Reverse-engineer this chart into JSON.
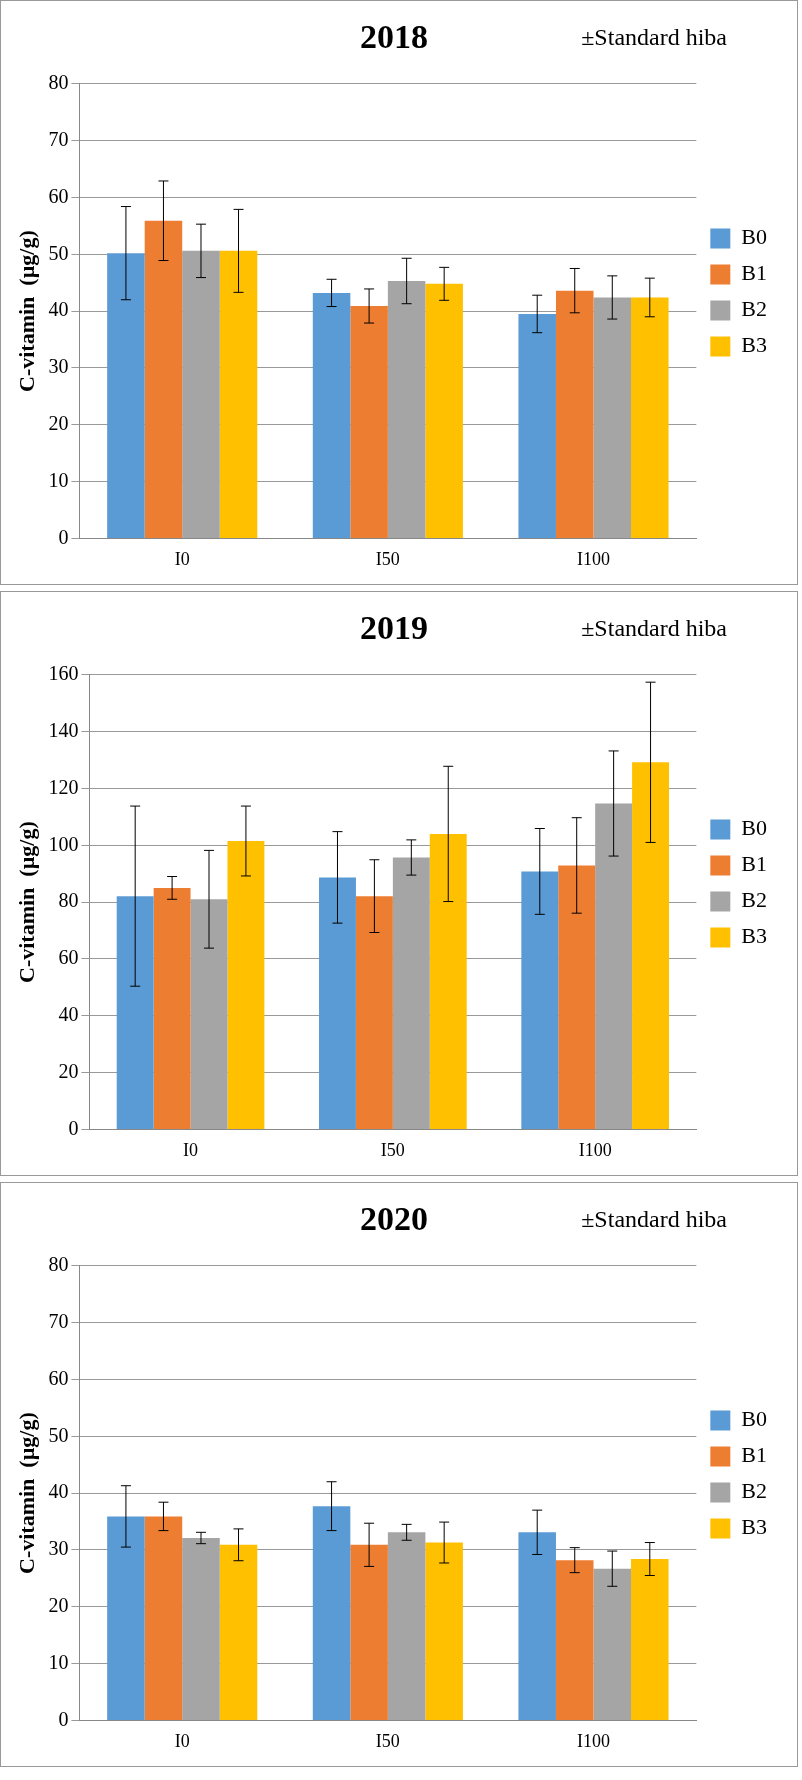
{
  "chart_data": [
    {
      "type": "bar",
      "title": "2018",
      "annotations": [
        "±Standard hiba"
      ],
      "ylabel": "C-vitamin  (µg/g)",
      "categories": [
        "I0",
        "I50",
        "I100"
      ],
      "ylim": [
        0,
        80
      ],
      "yticks": [
        0,
        10,
        20,
        30,
        40,
        50,
        60,
        70,
        80
      ],
      "grid": "y",
      "legend": "right",
      "series": [
        {
          "name": "B0",
          "color": "#5b9bd5",
          "values": [
            50.2,
            43.2,
            39.5
          ],
          "errors": [
            8.2,
            2.4,
            3.3
          ]
        },
        {
          "name": "B1",
          "color": "#ed7d31",
          "values": [
            55.9,
            40.9,
            43.6
          ],
          "errors": [
            7.0,
            3.0,
            3.9
          ]
        },
        {
          "name": "B2",
          "color": "#a5a5a5",
          "values": [
            50.6,
            45.3,
            42.4
          ],
          "errors": [
            4.7,
            4.0,
            3.8
          ]
        },
        {
          "name": "B3",
          "color": "#ffc000",
          "values": [
            50.6,
            44.8,
            42.4
          ],
          "errors": [
            7.3,
            2.9,
            3.4
          ]
        }
      ]
    },
    {
      "type": "bar",
      "title": "2019",
      "annotations": [
        "±Standard hiba"
      ],
      "ylabel": "C-vitamin  (µg/g)",
      "categories": [
        "I0",
        "I50",
        "I100"
      ],
      "ylim": [
        0,
        160
      ],
      "yticks": [
        0,
        20,
        40,
        60,
        80,
        100,
        120,
        140,
        160
      ],
      "grid": "y",
      "legend": "right",
      "series": [
        {
          "name": "B0",
          "color": "#5b9bd5",
          "values": [
            82.1,
            88.7,
            90.8
          ],
          "errors": [
            31.7,
            16.1,
            15.1
          ]
        },
        {
          "name": "B1",
          "color": "#ed7d31",
          "values": [
            85.0,
            82.1,
            92.9
          ],
          "errors": [
            4.0,
            12.8,
            16.8
          ]
        },
        {
          "name": "B2",
          "color": "#a5a5a5",
          "values": [
            81.0,
            95.7,
            114.7
          ],
          "errors": [
            17.2,
            6.2,
            18.5
          ]
        },
        {
          "name": "B3",
          "color": "#ffc000",
          "values": [
            101.5,
            104.0,
            129.2
          ],
          "errors": [
            12.3,
            23.8,
            28.2
          ]
        }
      ]
    },
    {
      "type": "bar",
      "title": "2020",
      "annotations": [
        "±Standard hiba"
      ],
      "ylabel": "C-vitamin  (µg/g)",
      "categories": [
        "I0",
        "I50",
        "I100"
      ],
      "ylim": [
        0,
        80
      ],
      "yticks": [
        0,
        10,
        20,
        30,
        40,
        50,
        60,
        70,
        80
      ],
      "grid": "y",
      "legend": "right",
      "series": [
        {
          "name": "B0",
          "color": "#5b9bd5",
          "values": [
            35.9,
            37.7,
            33.1
          ],
          "errors": [
            5.4,
            4.3,
            3.9
          ]
        },
        {
          "name": "B1",
          "color": "#ed7d31",
          "values": [
            35.9,
            30.9,
            28.2
          ],
          "errors": [
            2.5,
            3.8,
            2.2
          ]
        },
        {
          "name": "B2",
          "color": "#a5a5a5",
          "values": [
            32.1,
            33.1,
            26.7
          ],
          "errors": [
            1.0,
            1.4,
            3.1
          ]
        },
        {
          "name": "B3",
          "color": "#ffc000",
          "values": [
            30.9,
            31.3,
            28.4
          ],
          "errors": [
            2.8,
            3.6,
            2.9
          ]
        }
      ]
    }
  ]
}
